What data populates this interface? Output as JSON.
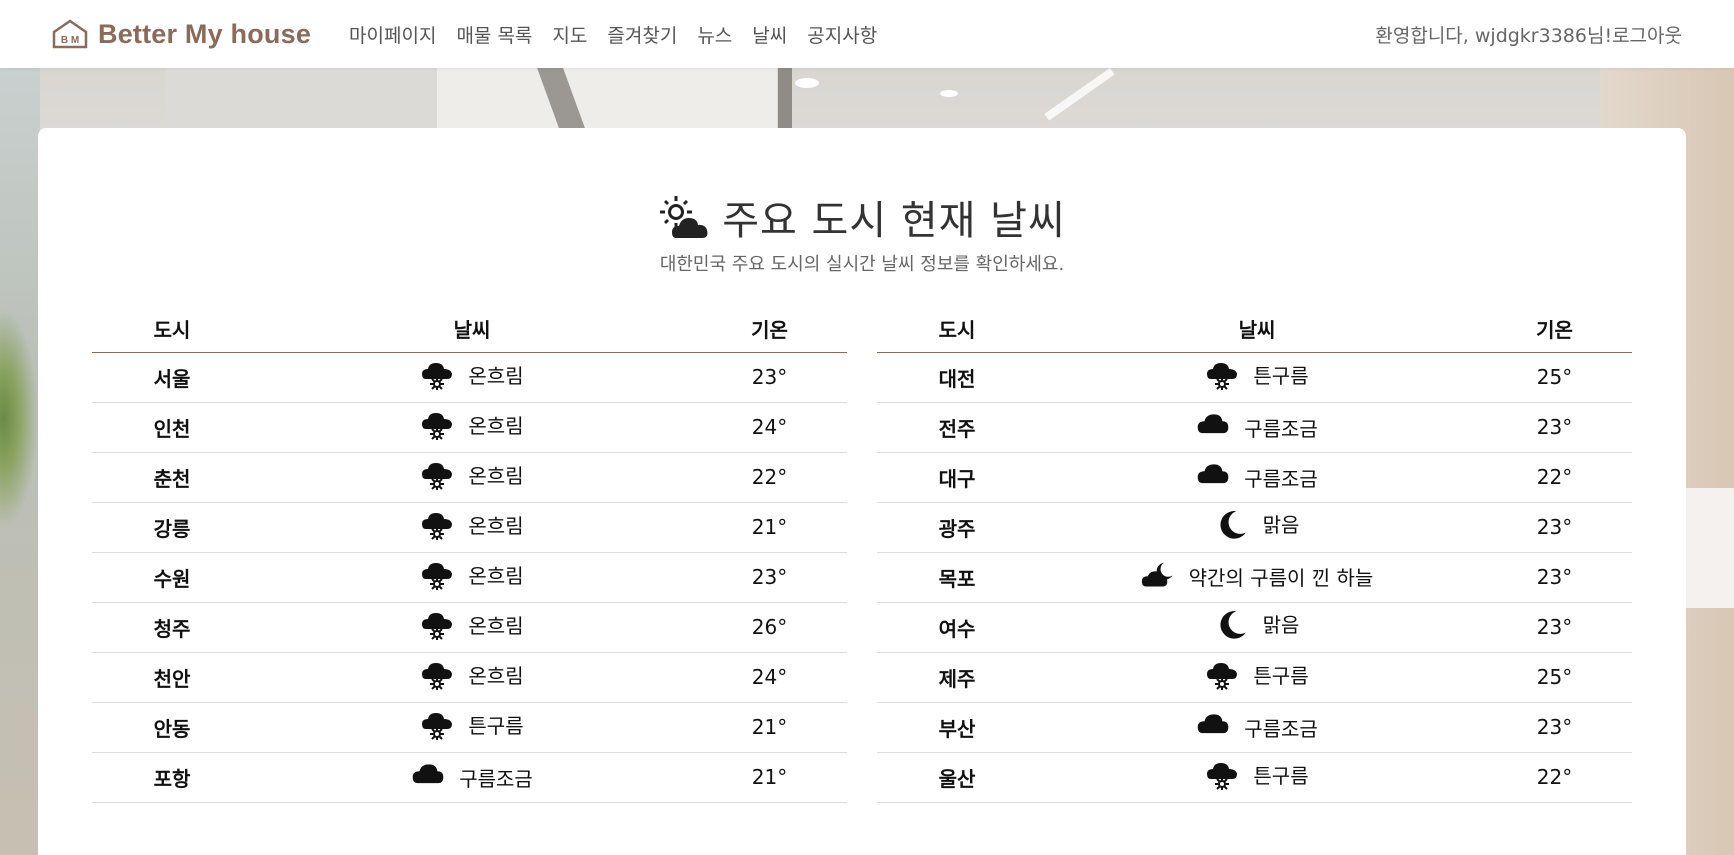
{
  "navbar": {
    "brand_logo_text": "B M",
    "brand_name": "Better My house",
    "links": [
      "마이페이지",
      "매물 목록",
      "지도",
      "즐겨찾기",
      "뉴스",
      "날씨",
      "공지사항"
    ],
    "welcome": "환영합니다, wjdgkr3386님!",
    "logout": "로그아웃"
  },
  "page": {
    "title": "주요 도시 현재 날씨",
    "subtitle": "대한민국 주요 도시의 실시간 날씨 정보를 확인하세요.",
    "title_icon": "sun-behind-cloud-icon"
  },
  "table": {
    "headers": {
      "city": "도시",
      "weather": "날씨",
      "temp": "기온"
    }
  },
  "left_rows": [
    {
      "city": "서울",
      "icon": "cloud-with-sun-icon",
      "weather": "온흐림",
      "temp": "23°"
    },
    {
      "city": "인천",
      "icon": "cloud-with-sun-icon",
      "weather": "온흐림",
      "temp": "24°"
    },
    {
      "city": "춘천",
      "icon": "cloud-with-sun-icon",
      "weather": "온흐림",
      "temp": "22°"
    },
    {
      "city": "강릉",
      "icon": "cloud-with-sun-icon",
      "weather": "온흐림",
      "temp": "21°"
    },
    {
      "city": "수원",
      "icon": "cloud-with-sun-icon",
      "weather": "온흐림",
      "temp": "23°"
    },
    {
      "city": "청주",
      "icon": "cloud-with-sun-icon",
      "weather": "온흐림",
      "temp": "26°"
    },
    {
      "city": "천안",
      "icon": "cloud-with-sun-icon",
      "weather": "온흐림",
      "temp": "24°"
    },
    {
      "city": "안동",
      "icon": "cloud-with-sun-icon",
      "weather": "튼구름",
      "temp": "21°"
    },
    {
      "city": "포항",
      "icon": "cloud-icon",
      "weather": "구름조금",
      "temp": "21°"
    }
  ],
  "right_rows": [
    {
      "city": "대전",
      "icon": "cloud-with-sun-icon",
      "weather": "튼구름",
      "temp": "25°"
    },
    {
      "city": "전주",
      "icon": "cloud-icon",
      "weather": "구름조금",
      "temp": "23°"
    },
    {
      "city": "대구",
      "icon": "cloud-icon",
      "weather": "구름조금",
      "temp": "22°"
    },
    {
      "city": "광주",
      "icon": "moon-icon",
      "weather": "맑음",
      "temp": "23°"
    },
    {
      "city": "목포",
      "icon": "cloud-with-moon-icon",
      "weather": "약간의 구름이 낀 하늘",
      "temp": "23°"
    },
    {
      "city": "여수",
      "icon": "moon-icon",
      "weather": "맑음",
      "temp": "23°"
    },
    {
      "city": "제주",
      "icon": "cloud-with-sun-icon",
      "weather": "튼구름",
      "temp": "25°"
    },
    {
      "city": "부산",
      "icon": "cloud-icon",
      "weather": "구름조금",
      "temp": "23°"
    },
    {
      "city": "울산",
      "icon": "cloud-with-sun-icon",
      "weather": "튼구름",
      "temp": "22°"
    }
  ]
}
